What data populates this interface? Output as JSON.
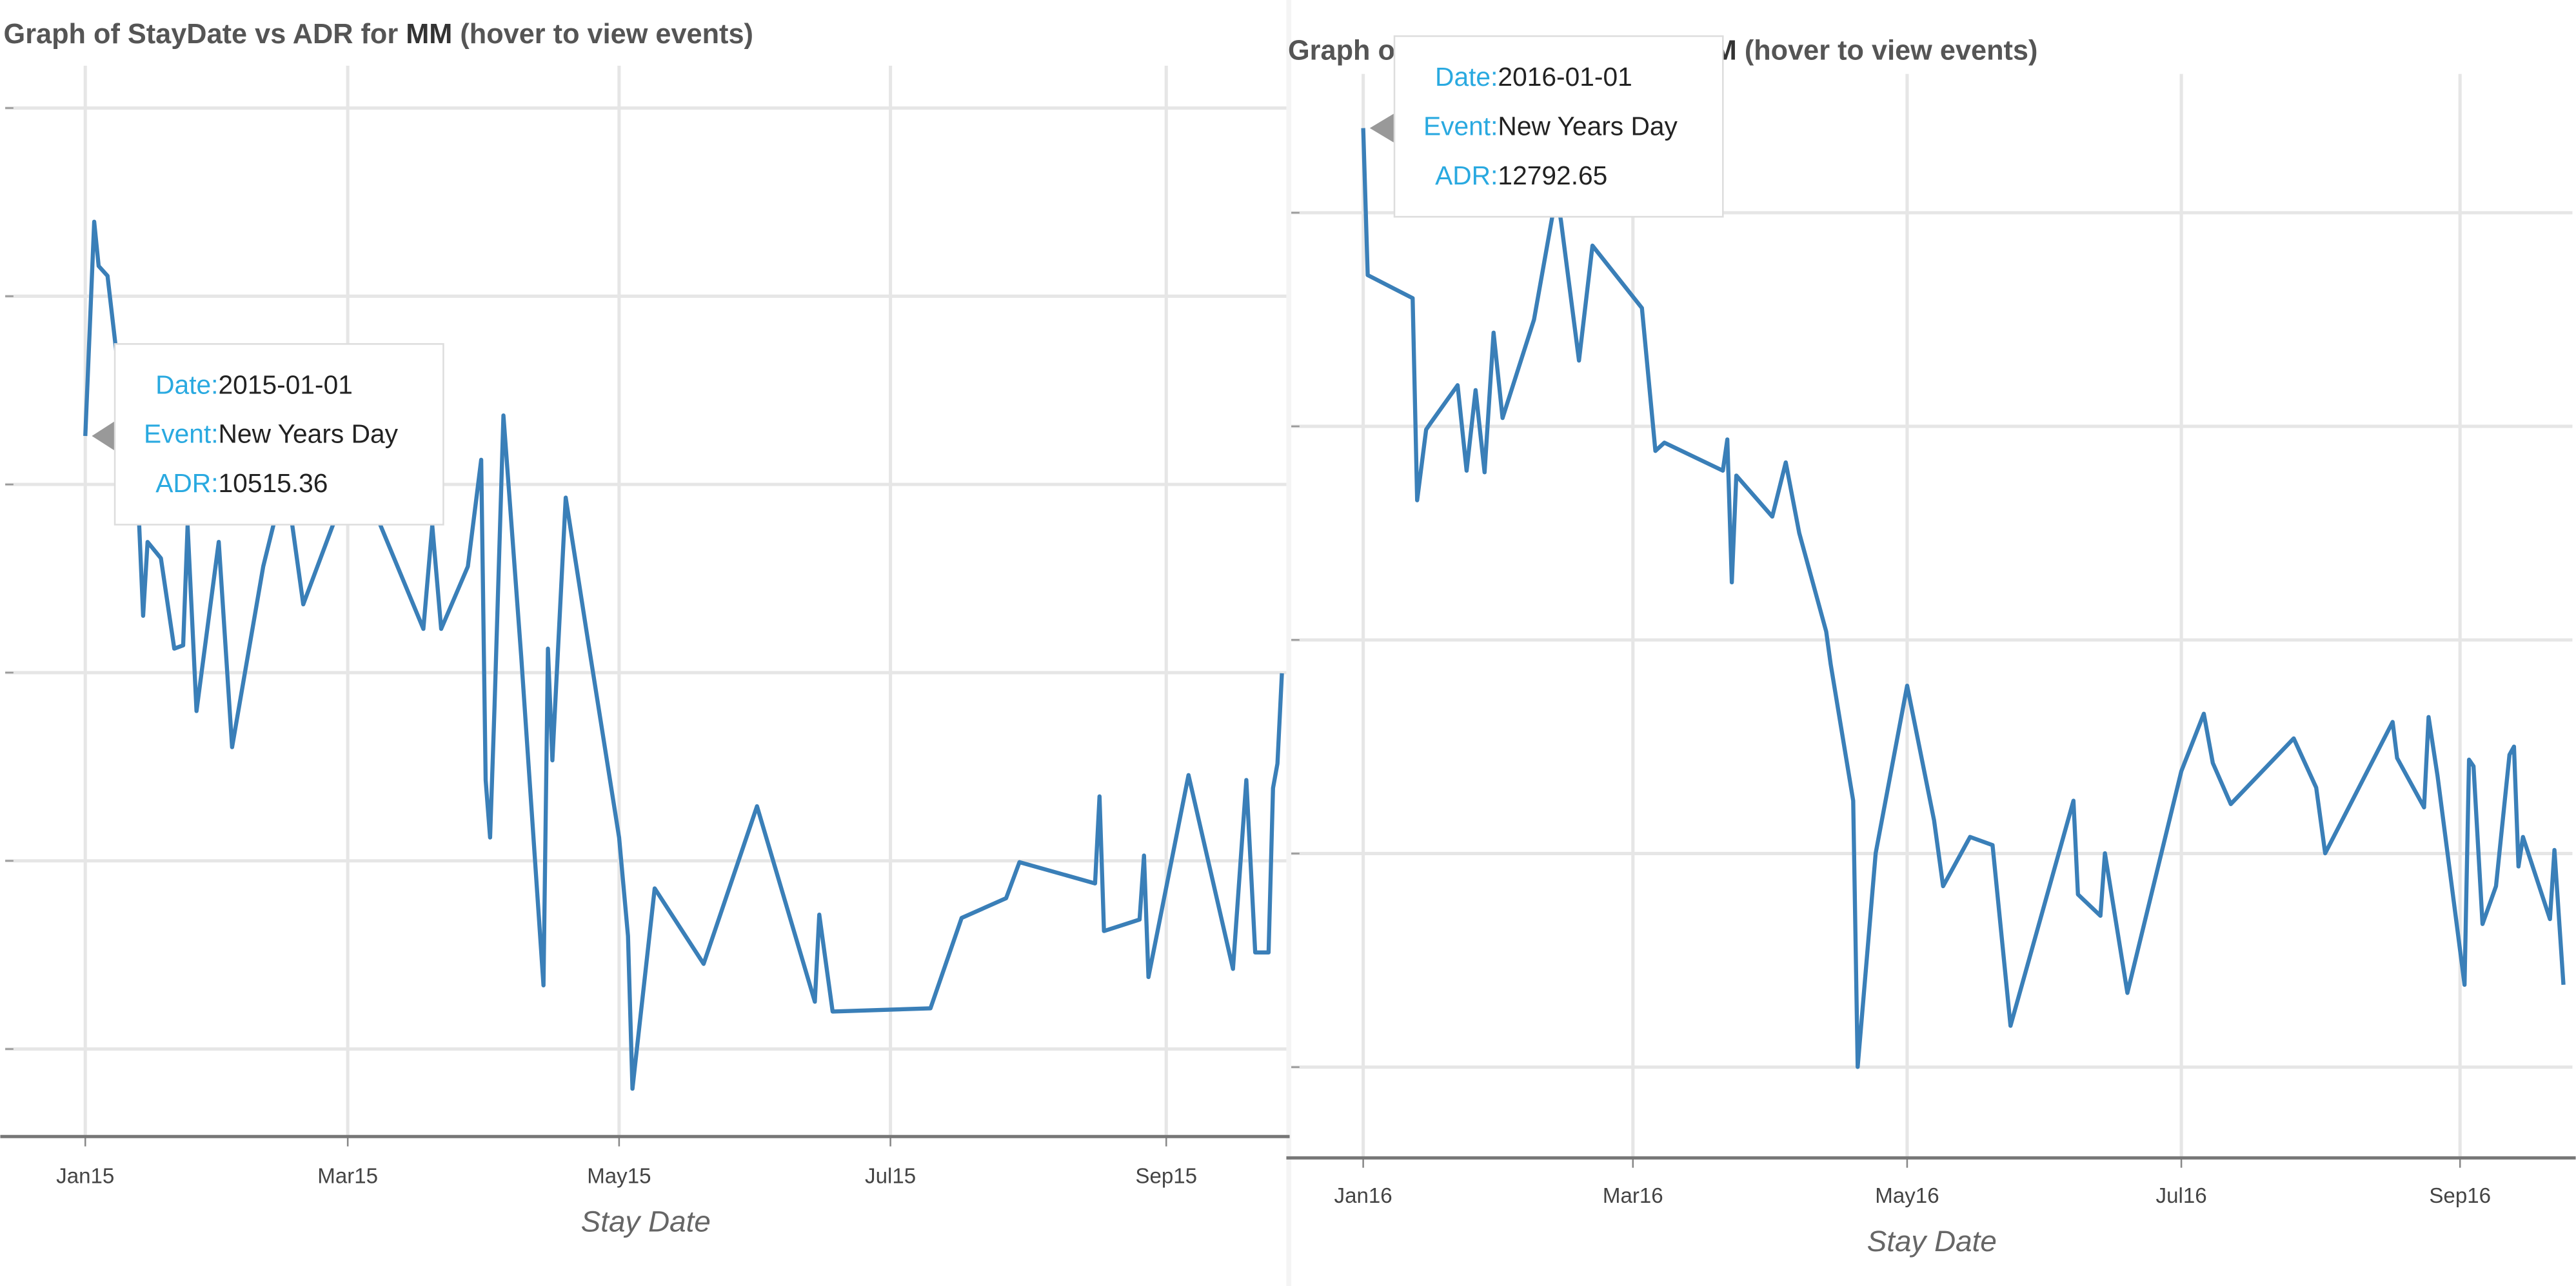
{
  "chart_data": [
    {
      "type": "line",
      "title": {
        "prefix": "Graph of StayDate vs ADR for ",
        "emphasis": "MM",
        "suffix": " (hover to view events)"
      },
      "x_label": "Stay Date",
      "xlim": [
        "2014-12-14",
        "2015-09-28"
      ],
      "xticks": [
        {
          "value": "2015-01-01",
          "label": "Jan15"
        },
        {
          "value": "2015-03-01",
          "label": "Mar15"
        },
        {
          "value": "2015-05-01",
          "label": "May15"
        },
        {
          "value": "2015-07-01",
          "label": "Jul15"
        },
        {
          "value": "2015-09-01",
          "label": "Sep15"
        }
      ],
      "ylim": [
        3070,
        14450
      ],
      "yticks": [
        4000,
        6000,
        8000,
        10000,
        12000,
        14000
      ],
      "grid": true,
      "series": [
        {
          "name": "ADR",
          "color": "#3a7fb8",
          "x": [
            "2015-01-01",
            "2015-01-03",
            "2015-01-04",
            "2015-01-06",
            "2015-01-08",
            "2015-01-09",
            "2015-01-12",
            "2015-01-14",
            "2015-01-15",
            "2015-01-18",
            "2015-01-21",
            "2015-01-23",
            "2015-01-24",
            "2015-01-26",
            "2015-01-31",
            "2015-02-03",
            "2015-02-10",
            "2015-02-15",
            "2015-02-19",
            "2015-02-27",
            "2015-03-05",
            "2015-03-18",
            "2015-03-20",
            "2015-03-22",
            "2015-03-28",
            "2015-03-31",
            "2015-04-01",
            "2015-04-02",
            "2015-04-03",
            "2015-04-05",
            "2015-04-09",
            "2015-04-14",
            "2015-04-15",
            "2015-04-16",
            "2015-04-19",
            "2015-04-24",
            "2015-05-01",
            "2015-05-03",
            "2015-05-04",
            "2015-05-09",
            "2015-05-20",
            "2015-06-01",
            "2015-06-14",
            "2015-06-15",
            "2015-06-18",
            "2015-07-10",
            "2015-07-17",
            "2015-07-27",
            "2015-07-30",
            "2015-08-16",
            "2015-08-17",
            "2015-08-18",
            "2015-08-26",
            "2015-08-27",
            "2015-08-28",
            "2015-09-06",
            "2015-09-16",
            "2015-09-19",
            "2015-09-21",
            "2015-09-24",
            "2015-09-25",
            "2015-09-26",
            "2015-09-27"
          ],
          "values": [
            10515.36,
            12792,
            12321,
            12216,
            11396,
            10436,
            10785,
            8604,
            9389,
            9215,
            8255,
            8290,
            9564,
            7592,
            9389,
            7208,
            9128,
            10087,
            8726,
            9738,
            9948,
            8465,
            9564,
            8465,
            9128,
            10262,
            6859,
            6248,
            7644,
            10733,
            8168,
            4677,
            8255,
            7068,
            9860,
            8342,
            6248,
            5201,
            3578,
            5707,
            4905,
            6580,
            4503,
            5428,
            4398,
            4433,
            5393,
            5603,
            5986,
            5760,
            6685,
            5254,
            5376,
            6056,
            4765,
            6911,
            4852,
            6859,
            5026,
            5026,
            6772,
            7034,
            7993
          ]
        }
      ],
      "tooltip": {
        "date_label": "Date:",
        "date": "2015-01-01",
        "event_label": "Event:",
        "event": "New Years Day",
        "adr_label": "ADR:",
        "adr": 10515.36
      }
    },
    {
      "type": "line",
      "title": {
        "prefix": "Graph of StayDate vs ADR for ",
        "emphasis": "MM",
        "suffix": " (hover to view events)"
      },
      "x_label": "Stay Date",
      "xlim": [
        "2015-12-16",
        "2016-09-26"
      ],
      "xticks": [
        {
          "value": "2016-01-01",
          "label": "Jan16"
        },
        {
          "value": "2016-03-01",
          "label": "Mar16"
        },
        {
          "value": "2016-05-01",
          "label": "May16"
        },
        {
          "value": "2016-07-01",
          "label": "Jul16"
        },
        {
          "value": "2016-09-01",
          "label": "Sep16"
        }
      ],
      "ylim": [
        3150,
        13300
      ],
      "yticks": [
        4000,
        6000,
        8000,
        10000,
        12000
      ],
      "grid": true,
      "series": [
        {
          "name": "ADR",
          "color": "#3a7fb8",
          "x": [
            "2016-01-01",
            "2016-01-02",
            "2016-01-12",
            "2016-01-13",
            "2016-01-15",
            "2016-01-16",
            "2016-01-22",
            "2016-01-24",
            "2016-01-26",
            "2016-01-28",
            "2016-01-30",
            "2016-02-01",
            "2016-02-08",
            "2016-02-13",
            "2016-02-14",
            "2016-02-18",
            "2016-02-21",
            "2016-03-03",
            "2016-03-06",
            "2016-03-08",
            "2016-03-21",
            "2016-03-22",
            "2016-03-23",
            "2016-03-24",
            "2016-04-01",
            "2016-04-04",
            "2016-04-07",
            "2016-04-13",
            "2016-04-14",
            "2016-04-19",
            "2016-04-20",
            "2016-04-24",
            "2016-05-01",
            "2016-05-07",
            "2016-05-09",
            "2016-05-15",
            "2016-05-20",
            "2016-05-24",
            "2016-06-07",
            "2016-06-08",
            "2016-06-13",
            "2016-06-14",
            "2016-06-19",
            "2016-07-01",
            "2016-07-06",
            "2016-07-08",
            "2016-07-12",
            "2016-07-26",
            "2016-07-31",
            "2016-08-02",
            "2016-08-17",
            "2016-08-18",
            "2016-08-24",
            "2016-08-25",
            "2016-08-27",
            "2016-09-02",
            "2016-09-03",
            "2016-09-04",
            "2016-09-06",
            "2016-09-09",
            "2016-09-12",
            "2016-09-13",
            "2016-09-14",
            "2016-09-15",
            "2016-09-21",
            "2016-09-22",
            "2016-09-24"
          ],
          "values": [
            12792.65,
            11416,
            11200,
            9308,
            9970,
            10031,
            10385,
            9585,
            10339,
            9570,
            10877,
            10078,
            11000,
            12185,
            11923,
            10616,
            11692,
            11108,
            9770,
            9847,
            9585,
            9877,
            8539,
            9539,
            9155,
            9662,
            9001,
            8078,
            7771,
            6494,
            4002,
            6002,
            7571,
            6309,
            5694,
            6155,
            6079,
            4387,
            6494,
            5617,
            5417,
            6002,
            4695,
            6771,
            7309,
            6848,
            6463,
            7078,
            6617,
            6002,
            7232,
            6894,
            6432,
            7278,
            6725,
            4771,
            6879,
            6817,
            5340,
            5694,
            6925,
            7001,
            5879,
            6155,
            5386,
            6033,
            4771
          ]
        }
      ],
      "tooltip": {
        "date_label": "Date:",
        "date": "2016-01-01",
        "event_label": "Event:",
        "event": "New Years Day",
        "adr_label": "ADR:",
        "adr": 12792.65
      }
    }
  ]
}
